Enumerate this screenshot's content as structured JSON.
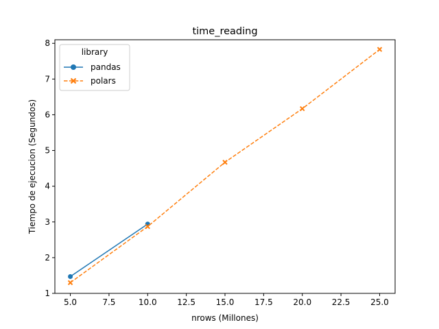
{
  "chart_data": {
    "type": "line",
    "title": "time_reading",
    "xlabel": "nrows (Millones)",
    "ylabel": "Tiempo de ejecucion (Segundos)",
    "xlim": [
      4.0,
      26.0
    ],
    "ylim": [
      1.0,
      8.1
    ],
    "xticks": [
      "5.0",
      "7.5",
      "10.0",
      "12.5",
      "15.0",
      "17.5",
      "20.0",
      "22.5",
      "25.0"
    ],
    "yticks": [
      "1",
      "2",
      "3",
      "4",
      "5",
      "6",
      "7",
      "8"
    ],
    "grid": false,
    "legend": {
      "title": "library",
      "placement": "top-left"
    },
    "series": [
      {
        "name": "pandas",
        "color": "#1f77b4",
        "style": "solid",
        "marker": "circle",
        "x": [
          5,
          10
        ],
        "y": [
          1.47,
          2.94
        ]
      },
      {
        "name": "polars",
        "color": "#ff7f0e",
        "style": "dashed",
        "marker": "x",
        "x": [
          5,
          10,
          15,
          20,
          25
        ],
        "y": [
          1.3,
          2.87,
          4.67,
          6.17,
          7.83
        ]
      }
    ]
  }
}
